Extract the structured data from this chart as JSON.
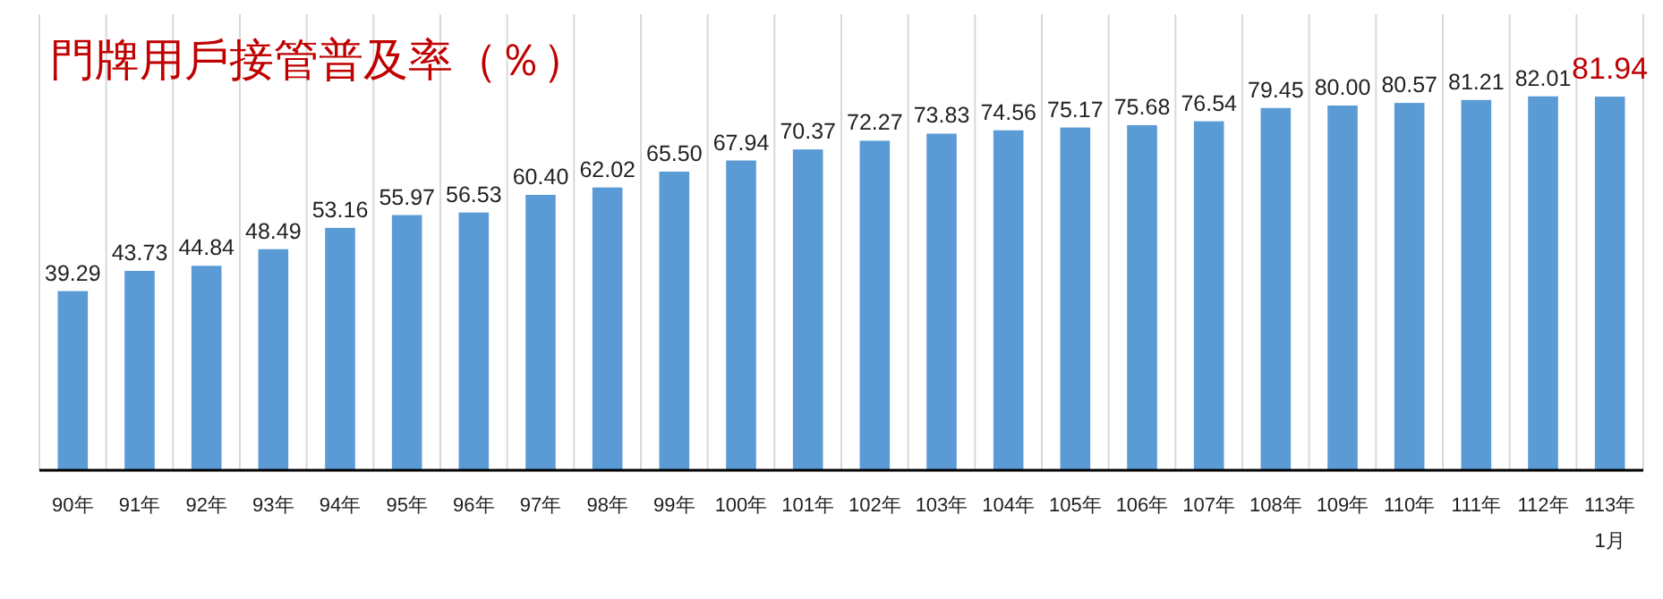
{
  "chart_data": {
    "type": "bar",
    "title": "門牌用戶接管普及率（％）",
    "categories": [
      "90年",
      "91年",
      "92年",
      "93年",
      "94年",
      "95年",
      "96年",
      "97年",
      "98年",
      "99年",
      "100年",
      "101年",
      "102年",
      "103年",
      "104年",
      "105年",
      "106年",
      "107年",
      "108年",
      "109年",
      "110年",
      "111年",
      "112年",
      "113年\n1月"
    ],
    "values": [
      39.29,
      43.73,
      44.84,
      48.49,
      53.16,
      55.97,
      56.53,
      60.4,
      62.02,
      65.5,
      67.94,
      70.37,
      72.27,
      73.83,
      74.56,
      75.17,
      75.68,
      76.54,
      79.45,
      80.0,
      80.57,
      81.21,
      82.01,
      81.94
    ],
    "value_labels": [
      "39.29",
      "43.73",
      "44.84",
      "48.49",
      "53.16",
      "55.97",
      "56.53",
      "60.40",
      "62.02",
      "65.50",
      "67.94",
      "70.37",
      "72.27",
      "73.83",
      "74.56",
      "75.17",
      "75.68",
      "76.54",
      "79.45",
      "80.00",
      "80.57",
      "81.21",
      "82.01",
      "81.94"
    ],
    "color": "#5b9bd5",
    "ylim": [
      0,
      100
    ],
    "grid": "x"
  }
}
